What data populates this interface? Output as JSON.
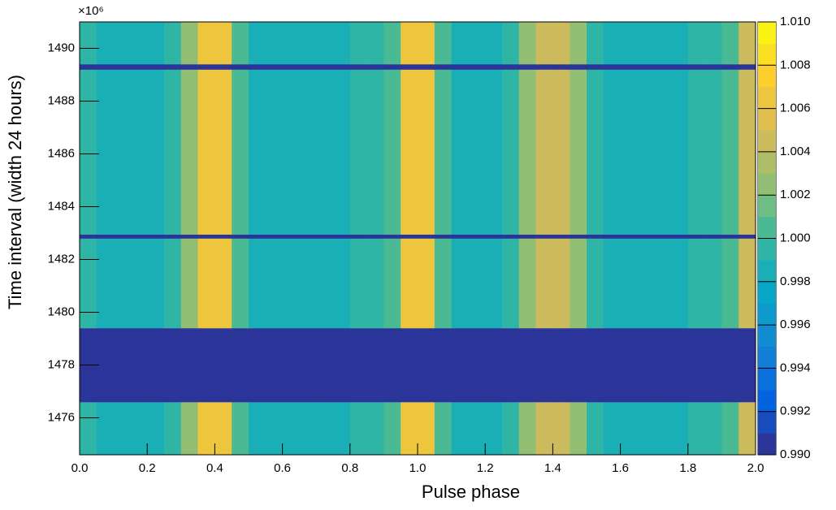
{
  "chart_data": {
    "type": "heatmap",
    "x_label": "Pulse phase",
    "y_label": "Time interval (width 24 hours)",
    "y_exponent_label": "×10⁶",
    "xlim": [
      0,
      2
    ],
    "ylim": [
      1474.6,
      1491
    ],
    "zlim": [
      0.99,
      1.01
    ],
    "xticks": [
      {
        "value": 0,
        "label": "0.0"
      },
      0.2,
      0.4,
      0.6,
      0.8,
      {
        "value": 1,
        "label": "1.0"
      },
      1.2,
      1.4,
      1.6,
      1.8,
      {
        "value": 2,
        "label": "2.0"
      }
    ],
    "yticks": [
      1476,
      1478,
      1480,
      1482,
      1484,
      1486,
      1488,
      1490
    ],
    "zticks": [
      {
        "value": 0.99,
        "label": "0.990"
      },
      {
        "value": 0.992,
        "label": "0.992"
      },
      {
        "value": 0.994,
        "label": "0.994"
      },
      {
        "value": 0.996,
        "label": "0.996"
      },
      {
        "value": 0.998,
        "label": "0.998"
      },
      {
        "value": 1,
        "label": "1.000"
      },
      {
        "value": 1.002,
        "label": "1.002"
      },
      {
        "value": 1.004,
        "label": "1.004"
      },
      {
        "value": 1.006,
        "label": "1.006"
      },
      {
        "value": 1.008,
        "label": "1.008"
      },
      {
        "value": 1.01,
        "label": "1.010"
      }
    ],
    "color_levels": 20,
    "colormap": [
      "#352a87",
      "#0363e1",
      "#1485d4",
      "#06a7c6",
      "#38b99e",
      "#92bf73",
      "#d9ba56",
      "#fcce2e",
      "#f9fb0e"
    ],
    "xbins": [
      0,
      0.05,
      0.1,
      0.15,
      0.2,
      0.25,
      0.3,
      0.35,
      0.4,
      0.45,
      0.5,
      0.55,
      0.6,
      0.65,
      0.7,
      0.75,
      0.8,
      0.85,
      0.9,
      0.95,
      1,
      1.05,
      1.1,
      1.15,
      1.2,
      1.25,
      1.3,
      1.35,
      1.4,
      1.45,
      1.5,
      1.55,
      1.6,
      1.65,
      1.7,
      1.75,
      1.8,
      1.85,
      1.9,
      1.95,
      2
    ],
    "ybins": [
      1474.6,
      1476.6,
      1479.4,
      1482.8,
      1482.95,
      1489.2,
      1489.4,
      1491
    ],
    "z": [
      [
        0.999,
        0.9985,
        0.9985,
        0.9985,
        0.9985,
        0.999,
        1.002,
        1.006,
        1.006,
        1.0,
        0.9985,
        0.9985,
        0.9985,
        0.9985,
        0.9985,
        0.9985,
        0.999,
        0.999,
        1.0,
        1.006,
        1.006,
        1.0,
        0.9985,
        0.9985,
        0.9985,
        0.999,
        1.002,
        1.005,
        1.005,
        1.002,
        0.999,
        0.9985,
        0.9985,
        0.9985,
        0.9985,
        0.9985,
        0.999,
        0.999,
        1.0,
        1.004
      ],
      [
        0.99,
        0.99,
        0.99,
        0.99,
        0.99,
        0.99,
        0.99,
        0.99,
        0.99,
        0.99,
        0.99,
        0.99,
        0.99,
        0.99,
        0.99,
        0.99,
        0.99,
        0.99,
        0.99,
        0.99,
        0.99,
        0.99,
        0.99,
        0.99,
        0.99,
        0.99,
        0.99,
        0.99,
        0.99,
        0.99,
        0.99,
        0.99,
        0.99,
        0.99,
        0.99,
        0.99,
        0.99,
        0.99,
        0.99,
        0.99
      ],
      [
        0.999,
        0.9985,
        0.9985,
        0.9985,
        0.9985,
        0.999,
        1.002,
        1.006,
        1.006,
        1.0,
        0.9985,
        0.9985,
        0.9985,
        0.9985,
        0.9985,
        0.9985,
        0.999,
        0.999,
        1.0,
        1.006,
        1.006,
        1.0,
        0.9985,
        0.9985,
        0.9985,
        0.999,
        1.002,
        1.005,
        1.005,
        1.002,
        0.999,
        0.9985,
        0.9985,
        0.9985,
        0.9985,
        0.9985,
        0.999,
        0.999,
        1.0,
        1.004
      ],
      [
        0.99,
        0.99,
        0.99,
        0.99,
        0.99,
        0.99,
        0.99,
        0.99,
        0.99,
        0.99,
        0.99,
        0.99,
        0.99,
        0.99,
        0.99,
        0.99,
        0.99,
        0.99,
        0.99,
        0.99,
        0.99,
        0.99,
        0.99,
        0.99,
        0.99,
        0.99,
        0.99,
        0.99,
        0.99,
        0.99,
        0.99,
        0.99,
        0.99,
        0.99,
        0.99,
        0.99,
        0.99,
        0.99,
        0.99,
        0.99
      ],
      [
        0.999,
        0.9985,
        0.9985,
        0.9985,
        0.9985,
        0.999,
        1.002,
        1.006,
        1.006,
        1.0,
        0.9985,
        0.9985,
        0.9985,
        0.9985,
        0.9985,
        0.9985,
        0.999,
        0.999,
        1.0,
        1.006,
        1.006,
        1.0,
        0.9985,
        0.9985,
        0.9985,
        0.999,
        1.002,
        1.005,
        1.005,
        1.002,
        0.999,
        0.9985,
        0.9985,
        0.9985,
        0.9985,
        0.9985,
        0.999,
        0.999,
        1.0,
        1.004
      ],
      [
        0.99,
        0.99,
        0.99,
        0.99,
        0.99,
        0.99,
        0.99,
        0.99,
        0.99,
        0.99,
        0.99,
        0.99,
        0.99,
        0.99,
        0.99,
        0.99,
        0.99,
        0.99,
        0.99,
        0.99,
        0.99,
        0.99,
        0.99,
        0.99,
        0.99,
        0.99,
        0.99,
        0.99,
        0.99,
        0.99,
        0.99,
        0.99,
        0.99,
        0.99,
        0.99,
        0.99,
        0.99,
        0.99,
        0.99,
        0.99
      ],
      [
        0.999,
        0.9985,
        0.9985,
        0.9985,
        0.9985,
        0.999,
        1.002,
        1.006,
        1.006,
        1.0,
        0.9985,
        0.9985,
        0.9985,
        0.9985,
        0.9985,
        0.9985,
        0.999,
        0.999,
        1.0,
        1.006,
        1.006,
        1.0,
        0.9985,
        0.9985,
        0.9985,
        0.999,
        1.002,
        1.005,
        1.005,
        1.002,
        0.999,
        0.9985,
        0.9985,
        0.9985,
        0.9985,
        0.9985,
        0.999,
        0.999,
        1.0,
        1.004
      ]
    ]
  }
}
